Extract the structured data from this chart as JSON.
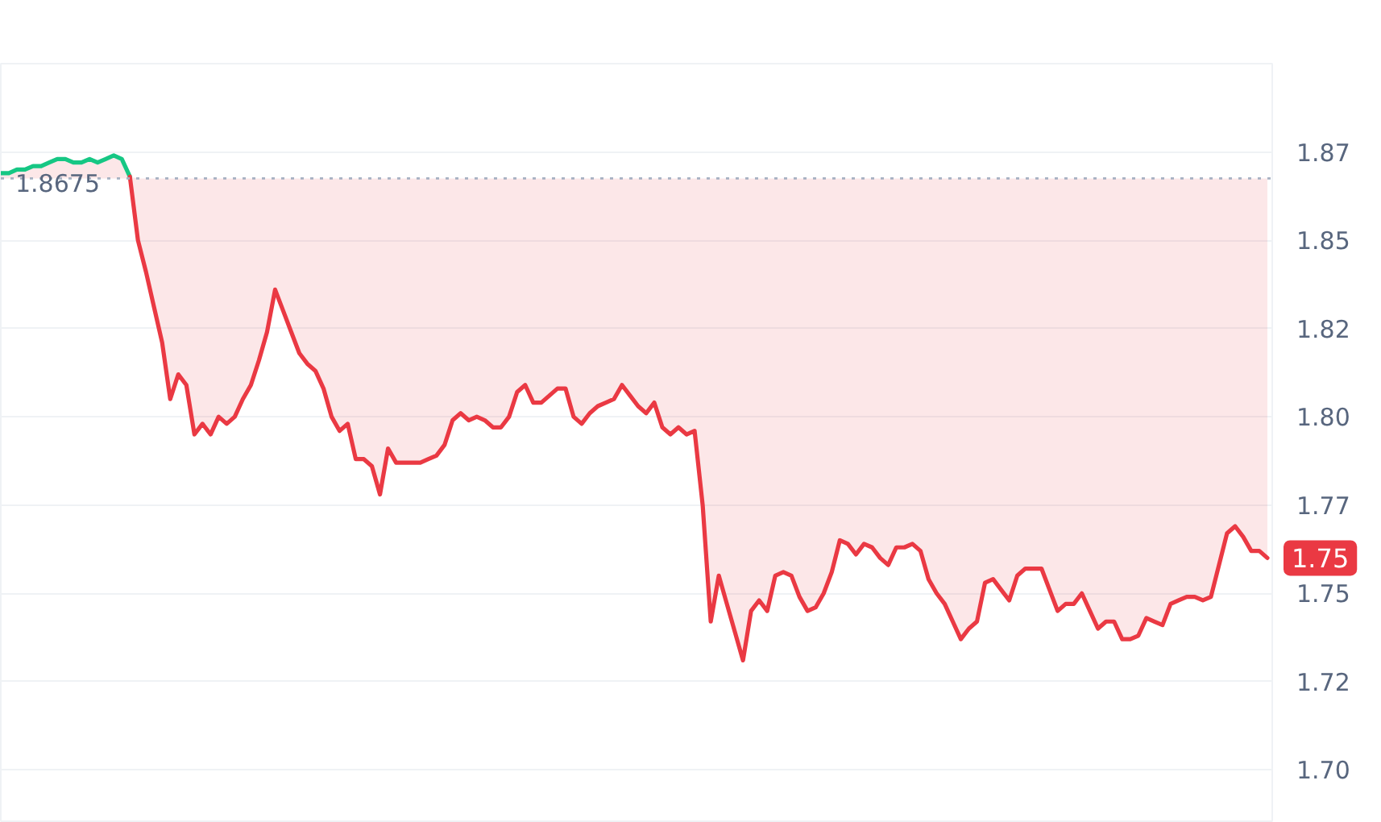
{
  "chart_data": {
    "type": "line",
    "categories": [
      null,
      null,
      null,
      null,
      null,
      null,
      null,
      null,
      null,
      null,
      null,
      null,
      null,
      null,
      null,
      null,
      null,
      null,
      null,
      null,
      null,
      null,
      null,
      null,
      null,
      null,
      null,
      null,
      null,
      null,
      null,
      null,
      null,
      null,
      null,
      null,
      null,
      null,
      null,
      null,
      null,
      null,
      null,
      null,
      null,
      null,
      null,
      null,
      null,
      null,
      null,
      null,
      null,
      null,
      null,
      null,
      null,
      null,
      null,
      null,
      null,
      null,
      null,
      null,
      null,
      null,
      null,
      null,
      null,
      null,
      null,
      null,
      null,
      null,
      null,
      null,
      null,
      null,
      null,
      null,
      null,
      null,
      null,
      null,
      null,
      null,
      null,
      null,
      null,
      null,
      null,
      null,
      null,
      null,
      null,
      null,
      null,
      null,
      null,
      null,
      null,
      null,
      null,
      null,
      null,
      null,
      null,
      null,
      null,
      null,
      null,
      null,
      null,
      null,
      null,
      null,
      null,
      null,
      null,
      null,
      null,
      null,
      null,
      null,
      null,
      null,
      null,
      null,
      null,
      null,
      null,
      null,
      null,
      null,
      null,
      null,
      null,
      null,
      null,
      null,
      null,
      null,
      null,
      null,
      null,
      null,
      null,
      null,
      null,
      null,
      null,
      null,
      null,
      null,
      null,
      null,
      null,
      null
    ],
    "ylim": [
      1.685,
      1.9
    ],
    "yticks": [
      {
        "value": 1.875,
        "label": "1.87"
      },
      1.85,
      {
        "value": 1.825,
        "label": "1.82"
      },
      {
        "value": 1.8,
        "label": "1.80"
      },
      {
        "value": 1.775,
        "label": "1.77"
      },
      1.75,
      {
        "value": 1.725,
        "label": "1.72"
      },
      {
        "value": 1.7,
        "label": "1.70"
      }
    ],
    "tick_labels": "y",
    "grid": "y",
    "series": [
      {
        "color": "#16c784",
        "values": [
          1.869,
          1.869,
          1.87,
          1.87,
          1.871,
          1.871,
          1.872,
          1.873,
          1.873,
          1.872,
          1.872,
          1.873,
          1.872,
          1.873,
          1.874,
          1.873,
          1.868,
          null,
          null,
          null,
          null,
          null,
          null,
          null,
          null,
          null,
          null,
          null,
          null,
          null,
          null,
          null,
          null,
          null,
          null,
          null,
          null,
          null,
          null,
          null,
          null,
          null,
          null,
          null,
          null,
          null,
          null,
          null,
          null,
          null,
          null,
          null,
          null,
          null,
          null,
          null,
          null,
          null,
          null,
          null,
          null,
          null,
          null,
          null,
          null,
          null,
          null,
          null,
          null,
          null,
          null,
          null,
          null,
          null,
          null,
          null,
          null,
          null,
          null,
          null,
          null,
          null,
          null,
          null,
          null,
          null,
          null,
          null,
          null,
          null,
          null,
          null,
          null,
          null,
          null,
          null,
          null,
          null,
          null,
          null,
          null,
          null,
          null,
          null,
          null,
          null,
          null,
          null,
          null,
          null,
          null,
          null,
          null,
          null,
          null,
          null,
          null,
          null,
          null,
          null,
          null,
          null,
          null,
          null,
          null,
          null,
          null,
          null,
          null,
          null,
          null,
          null,
          null,
          null,
          null,
          null,
          null,
          null,
          null,
          null,
          null,
          null,
          null,
          null,
          null,
          null,
          null,
          null,
          null,
          null,
          null,
          null,
          null,
          null,
          null,
          null,
          null,
          null
        ]
      },
      {
        "color": "#ea3943",
        "values": [
          null,
          null,
          null,
          null,
          null,
          null,
          null,
          null,
          null,
          null,
          null,
          null,
          null,
          null,
          null,
          null,
          1.868,
          1.85,
          1.841,
          1.831,
          1.821,
          1.805,
          1.812,
          1.809,
          1.795,
          1.798,
          1.795,
          1.8,
          1.798,
          1.8,
          1.805,
          1.809,
          1.816,
          1.824,
          1.836,
          1.83,
          1.824,
          1.818,
          1.815,
          1.813,
          1.808,
          1.8,
          1.796,
          1.798,
          1.788,
          1.788,
          1.786,
          1.778,
          1.791,
          1.787,
          1.787,
          1.787,
          1.787,
          1.788,
          1.789,
          1.792,
          1.799,
          1.801,
          1.799,
          1.8,
          1.799,
          1.797,
          1.797,
          1.8,
          1.807,
          1.809,
          1.804,
          1.804,
          1.806,
          1.808,
          1.808,
          1.8,
          1.798,
          1.801,
          1.803,
          1.804,
          1.805,
          1.809,
          1.806,
          1.803,
          1.801,
          1.804,
          1.797,
          1.795,
          1.797,
          1.795,
          1.796,
          1.775,
          1.742,
          1.755,
          1.747,
          1.739,
          1.731,
          1.745,
          1.748,
          1.745,
          1.755,
          1.756,
          1.755,
          1.749,
          1.745,
          1.746,
          1.75,
          1.756,
          1.765,
          1.764,
          1.761,
          1.764,
          1.763,
          1.76,
          1.758,
          1.763,
          1.763,
          1.764,
          1.762,
          1.754,
          1.75,
          1.747,
          1.742,
          1.737,
          1.74,
          1.742,
          1.753,
          1.754,
          1.751,
          1.748,
          1.755,
          1.757,
          1.757,
          1.757,
          1.751,
          1.745,
          1.747,
          1.747,
          1.75,
          1.745,
          1.74,
          1.742,
          1.742,
          1.737,
          1.737,
          1.738,
          1.743,
          1.742,
          1.741,
          1.747,
          1.748,
          1.749,
          1.749,
          1.748,
          1.749,
          1.758,
          1.767,
          1.769,
          1.766,
          1.762,
          1.762,
          1.76
        ],
        "lower": [
          1.8675,
          1.8675,
          1.8675,
          1.8675,
          1.8675,
          1.8675,
          1.8675,
          1.8675,
          1.8675,
          1.8675,
          1.8675,
          1.8675,
          1.8675,
          1.8675,
          1.8675,
          1.8675,
          1.8675,
          1.85,
          1.841,
          1.831,
          1.821,
          1.805,
          1.812,
          1.809,
          1.795,
          1.798,
          1.795,
          1.8,
          1.798,
          1.8,
          1.805,
          1.809,
          1.816,
          1.824,
          1.836,
          1.83,
          1.824,
          1.818,
          1.815,
          1.813,
          1.808,
          1.8,
          1.796,
          1.798,
          1.788,
          1.788,
          1.786,
          1.778,
          1.791,
          1.787,
          1.787,
          1.787,
          1.787,
          1.788,
          1.789,
          1.792,
          1.799,
          1.801,
          1.799,
          1.8,
          1.799,
          1.797,
          1.797,
          1.8,
          1.807,
          1.809,
          1.804,
          1.804,
          1.806,
          1.808,
          1.808,
          1.8,
          1.798,
          1.801,
          1.803,
          1.804,
          1.805,
          1.809,
          1.806,
          1.803,
          1.801,
          1.804,
          1.797,
          1.795,
          1.797,
          1.795,
          1.796,
          1.775,
          1.742,
          1.755,
          1.747,
          1.739,
          1.731,
          1.745,
          1.748,
          1.745,
          1.755,
          1.756,
          1.755,
          1.749,
          1.745,
          1.746,
          1.75,
          1.756,
          1.765,
          1.764,
          1.761,
          1.764,
          1.763,
          1.76,
          1.758,
          1.763,
          1.763,
          1.764,
          1.762,
          1.754,
          1.75,
          1.747,
          1.742,
          1.737,
          1.74,
          1.742,
          1.753,
          1.754,
          1.751,
          1.748,
          1.755,
          1.757,
          1.757,
          1.757,
          1.751,
          1.745,
          1.747,
          1.747,
          1.75,
          1.745,
          1.74,
          1.742,
          1.742,
          1.737,
          1.737,
          1.738,
          1.743,
          1.742,
          1.741,
          1.747,
          1.748,
          1.749,
          1.749,
          1.748,
          1.749,
          1.758,
          1.767,
          1.769,
          1.766,
          1.762,
          1.762,
          1.76
        ],
        "upper": [
          1.869,
          1.869,
          1.87,
          1.87,
          1.871,
          1.871,
          1.872,
          1.873,
          1.873,
          1.872,
          1.872,
          1.873,
          1.872,
          1.873,
          1.874,
          1.873,
          1.868,
          1.8675,
          1.8675,
          1.8675,
          1.8675,
          1.8675,
          1.8675,
          1.8675,
          1.8675,
          1.8675,
          1.8675,
          1.8675,
          1.8675,
          1.8675,
          1.8675,
          1.8675,
          1.8675,
          1.8675,
          1.8675,
          1.8675,
          1.8675,
          1.8675,
          1.8675,
          1.8675,
          1.8675,
          1.8675,
          1.8675,
          1.8675,
          1.8675,
          1.8675,
          1.8675,
          1.8675,
          1.8675,
          1.8675,
          1.8675,
          1.8675,
          1.8675,
          1.8675,
          1.8675,
          1.8675,
          1.8675,
          1.8675,
          1.8675,
          1.8675,
          1.8675,
          1.8675,
          1.8675,
          1.8675,
          1.8675,
          1.8675,
          1.8675,
          1.8675,
          1.8675,
          1.8675,
          1.8675,
          1.8675,
          1.8675,
          1.8675,
          1.8675,
          1.8675,
          1.8675,
          1.8675,
          1.8675,
          1.8675,
          1.8675,
          1.8675,
          1.8675,
          1.8675,
          1.8675,
          1.8675,
          1.8675,
          1.8675,
          1.8675,
          1.8675,
          1.8675,
          1.8675,
          1.8675,
          1.8675,
          1.8675,
          1.8675,
          1.8675,
          1.8675,
          1.8675,
          1.8675,
          1.8675,
          1.8675,
          1.8675,
          1.8675,
          1.8675,
          1.8675,
          1.8675,
          1.8675,
          1.8675,
          1.8675,
          1.8675,
          1.8675,
          1.8675,
          1.8675,
          1.8675,
          1.8675,
          1.8675,
          1.8675,
          1.8675,
          1.8675,
          1.8675,
          1.8675,
          1.8675,
          1.8675,
          1.8675,
          1.8675,
          1.8675,
          1.8675,
          1.8675,
          1.8675,
          1.8675,
          1.8675,
          1.8675,
          1.8675,
          1.8675,
          1.8675,
          1.8675,
          1.8675,
          1.8675,
          1.8675,
          1.8675,
          1.8675,
          1.8675,
          1.8675,
          1.8675,
          1.8675,
          1.8675,
          1.8675,
          1.8675,
          1.8675,
          1.8675,
          1.8675,
          1.8675,
          1.8675,
          1.8675,
          1.8675,
          1.8675,
          1.8675
        ]
      }
    ],
    "ref_lines": [
      {
        "axis": "y",
        "value": 1.8675,
        "label": "1.8675",
        "line_style": "dotted",
        "color": "#a7b1c2"
      }
    ],
    "annotations": [
      "1.75"
    ]
  }
}
